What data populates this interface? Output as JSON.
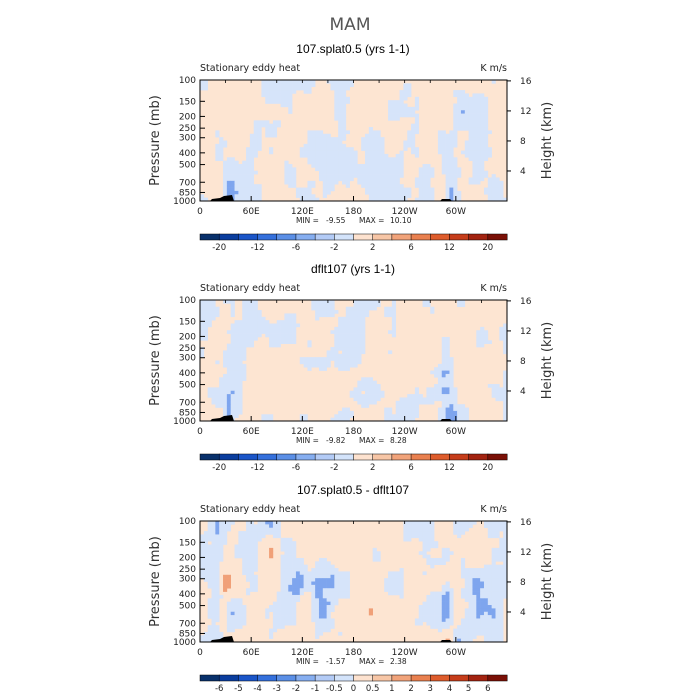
{
  "figure_title": "MAM",
  "chart_data": [
    {
      "type": "heatmap",
      "title": "107.splat0.5 (yrs 1-1)",
      "left_label": "Stationary eddy heat",
      "units": "K m/s",
      "ylabel": "Pressure (mb)",
      "ylabel_right": "Height (km)",
      "y_ticks": [
        "100",
        "150",
        "200",
        "250",
        "300",
        "400",
        "500",
        "700",
        "850",
        "1000"
      ],
      "y_right_ticks": [
        "16",
        "12",
        "8",
        "4"
      ],
      "x_ticks": [
        "0",
        "60E",
        "120E",
        "180",
        "120W",
        "60W"
      ],
      "min_label": "MIN =",
      "min_value": "-9.55",
      "max_label": "MAX =",
      "max_value": "10.10",
      "colorbar_labels": [
        "-20",
        "-12",
        "-6",
        "-2",
        "2",
        "6",
        "12",
        "20"
      ],
      "colorbar_levels": 16,
      "colorbar_colors": [
        "#08306b",
        "#0a3d9e",
        "#1a55c8",
        "#3470dc",
        "#5b8fe6",
        "#86aef0",
        "#b3cbf6",
        "#d3e3fa",
        "#fde2cf",
        "#f7c6a6",
        "#f1a37a",
        "#e9804f",
        "#de5c2c",
        "#c63d1a",
        "#a32310",
        "#7a1006"
      ],
      "field": {
        "background_color": "#fde5d2",
        "patch_color": "#d6e4fa",
        "strong_negative_color": "#7ea5ee",
        "strong_positive_color": "#f3b48e",
        "amplitude": 0.45,
        "hotspots": [
          {
            "lon": 35,
            "p": 950,
            "value": -0.9
          },
          {
            "lon": 290,
            "p": 500,
            "value": -0.55
          },
          {
            "lon": 295,
            "p": 950,
            "value": -0.8
          }
        ]
      }
    },
    {
      "type": "heatmap",
      "title": "dflt107 (yrs 1-1)",
      "left_label": "Stationary eddy heat",
      "units": "K m/s",
      "ylabel": "Pressure (mb)",
      "ylabel_right": "Height (km)",
      "y_ticks": [
        "100",
        "150",
        "200",
        "250",
        "300",
        "400",
        "500",
        "700",
        "850",
        "1000"
      ],
      "y_right_ticks": [
        "16",
        "12",
        "8",
        "4"
      ],
      "x_ticks": [
        "0",
        "60E",
        "120E",
        "180",
        "120W",
        "60W"
      ],
      "min_label": "MIN =",
      "min_value": "-9.82",
      "max_label": "MAX =",
      "max_value": "8.28",
      "colorbar_labels": [
        "-20",
        "-12",
        "-6",
        "-2",
        "2",
        "6",
        "12",
        "20"
      ],
      "colorbar_levels": 16,
      "colorbar_colors": [
        "#08306b",
        "#0a3d9e",
        "#1a55c8",
        "#3470dc",
        "#5b8fe6",
        "#86aef0",
        "#b3cbf6",
        "#d3e3fa",
        "#fde2cf",
        "#f7c6a6",
        "#f1a37a",
        "#e9804f",
        "#de5c2c",
        "#c63d1a",
        "#a32310",
        "#7a1006"
      ],
      "field": {
        "background_color": "#fde5d2",
        "patch_color": "#d6e4fa",
        "strong_negative_color": "#7ea5ee",
        "strong_positive_color": "#f3b48e",
        "amplitude": 0.45,
        "hotspots": [
          {
            "lon": 35,
            "p": 950,
            "value": -0.85
          },
          {
            "lon": 288,
            "p": 500,
            "value": -0.5
          },
          {
            "lon": 294,
            "p": 950,
            "value": -0.75
          }
        ]
      }
    },
    {
      "type": "heatmap",
      "title": "107.splat0.5 - dflt107",
      "left_label": "Stationary eddy heat",
      "units": "K m/s",
      "ylabel": "Pressure (mb)",
      "ylabel_right": "Height (km)",
      "y_ticks": [
        "100",
        "150",
        "200",
        "250",
        "300",
        "400",
        "500",
        "700",
        "850",
        "1000"
      ],
      "y_right_ticks": [
        "16",
        "12",
        "8",
        "4"
      ],
      "x_ticks": [
        "0",
        "60E",
        "120E",
        "180",
        "120W",
        "60W"
      ],
      "min_label": "MIN =",
      "min_value": "-1.57",
      "max_label": "MAX =",
      "max_value": "2.38",
      "colorbar_labels": [
        "-6",
        "-5",
        "-4",
        "-3",
        "-2",
        "-1",
        "-0.5",
        "0",
        "0.5",
        "1",
        "2",
        "3",
        "4",
        "5",
        "6"
      ],
      "colorbar_levels": 16,
      "colorbar_colors": [
        "#08306b",
        "#0a3d9e",
        "#1a55c8",
        "#3470dc",
        "#5b8fe6",
        "#86aef0",
        "#b3cbf6",
        "#d3e3fa",
        "#fde2cf",
        "#f7c6a6",
        "#f1a37a",
        "#e9804f",
        "#de5c2c",
        "#c63d1a",
        "#a32310",
        "#7a1006"
      ],
      "field": {
        "background_color": "#fde5d2",
        "patch_color": "#d6e4fa",
        "strong_negative_color": "#7ea5ee",
        "strong_positive_color": "#f0a078",
        "amplitude": 0.6,
        "hotspots": [
          {
            "lon": 30,
            "p": 300,
            "value": 0.9
          },
          {
            "lon": 26,
            "p": 700,
            "value": 0.8
          },
          {
            "lon": 118,
            "p": 350,
            "value": -0.85
          },
          {
            "lon": 120,
            "p": 450,
            "value": 0.85
          },
          {
            "lon": 290,
            "p": 450,
            "value": -0.8
          },
          {
            "lon": 292,
            "p": 950,
            "value": 0.7
          }
        ]
      }
    }
  ]
}
